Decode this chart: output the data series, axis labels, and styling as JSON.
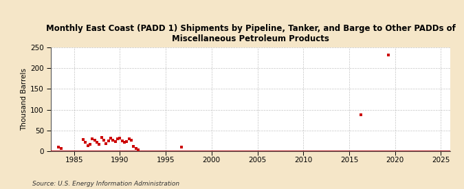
{
  "title": "Monthly East Coast (PADD 1) Shipments by Pipeline, Tanker, and Barge to Other PADDs of\nMiscellaneous Petroleum Products",
  "ylabel": "Thousand Barrels",
  "source": "Source: U.S. Energy Information Administration",
  "background_color": "#f5e6c8",
  "plot_bg_color": "#ffffff",
  "scatter_color": "#cc0000",
  "line_color": "#aa0000",
  "grid_color": "#aaaaaa",
  "xlim": [
    1982.5,
    2026
  ],
  "ylim": [
    0,
    250
  ],
  "yticks": [
    0,
    50,
    100,
    150,
    200,
    250
  ],
  "xticks": [
    1985,
    1990,
    1995,
    2000,
    2005,
    2010,
    2015,
    2020,
    2025
  ],
  "data_points": [
    [
      1983.3,
      10
    ],
    [
      1983.6,
      7
    ],
    [
      1986.0,
      28
    ],
    [
      1986.25,
      22
    ],
    [
      1986.5,
      14
    ],
    [
      1986.75,
      16
    ],
    [
      1987.0,
      30
    ],
    [
      1987.25,
      26
    ],
    [
      1987.5,
      21
    ],
    [
      1987.75,
      17
    ],
    [
      1988.0,
      33
    ],
    [
      1988.25,
      27
    ],
    [
      1988.5,
      19
    ],
    [
      1988.75,
      24
    ],
    [
      1989.0,
      31
    ],
    [
      1989.25,
      27
    ],
    [
      1989.5,
      23
    ],
    [
      1989.75,
      29
    ],
    [
      1990.0,
      31
    ],
    [
      1990.25,
      25
    ],
    [
      1990.5,
      21
    ],
    [
      1990.75,
      23
    ],
    [
      1991.0,
      29
    ],
    [
      1991.25,
      26
    ],
    [
      1991.5,
      11
    ],
    [
      1991.75,
      6
    ],
    [
      1992.0,
      3
    ],
    [
      1996.75,
      10
    ],
    [
      2016.25,
      88
    ],
    [
      2019.25,
      232
    ]
  ],
  "zero_line_data": {
    "x_start": 1982.5,
    "x_end": 2026
  }
}
